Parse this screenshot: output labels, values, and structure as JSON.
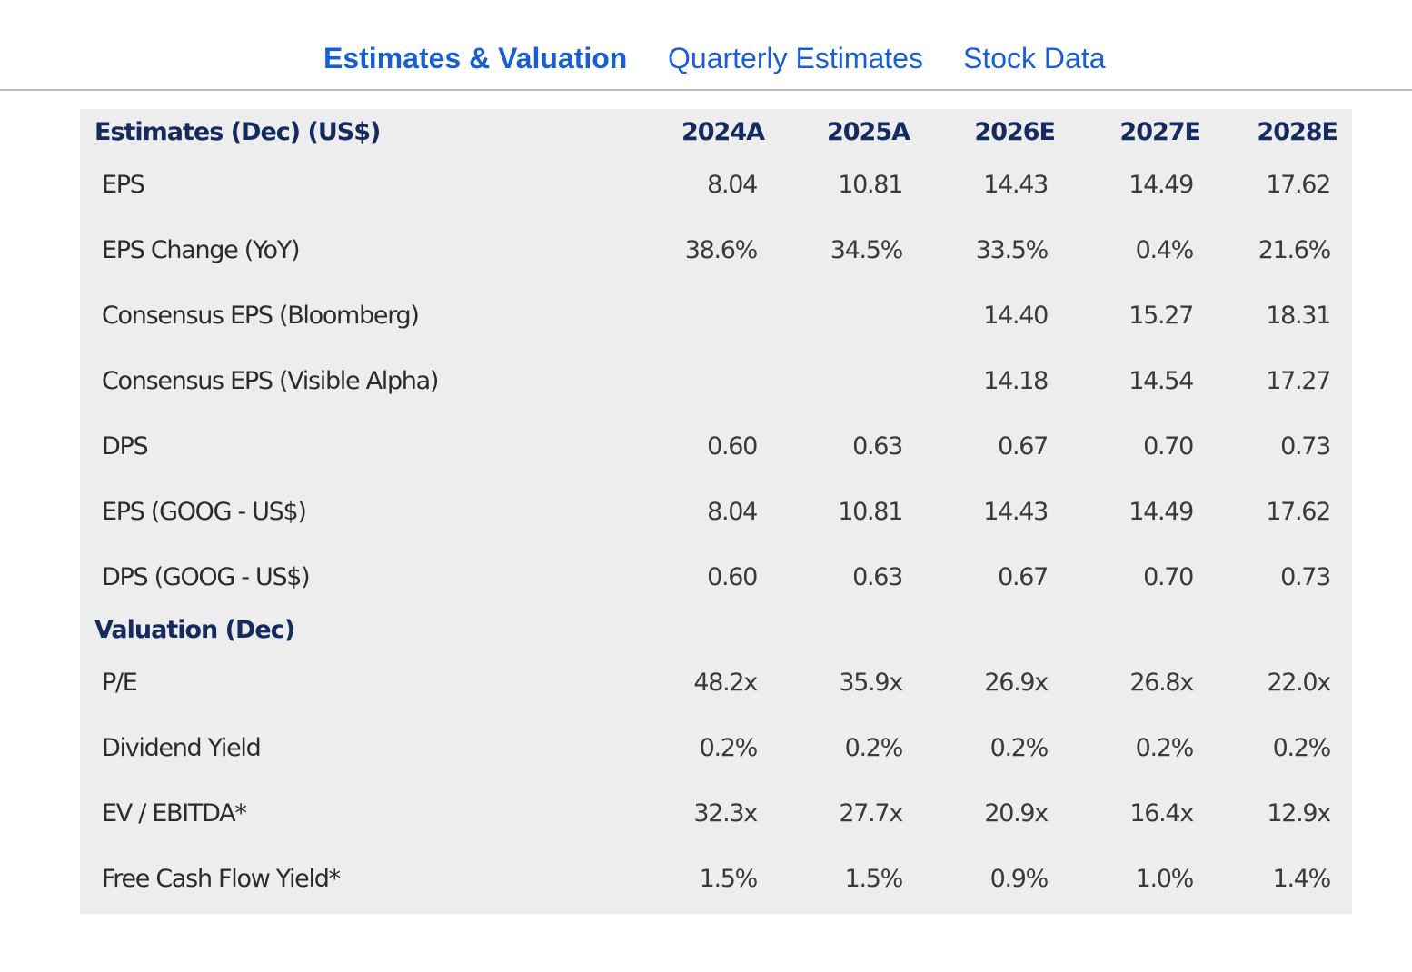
{
  "tabs": [
    {
      "label": "Estimates & Valuation",
      "active": true
    },
    {
      "label": "Quarterly Estimates",
      "active": false
    },
    {
      "label": "Stock Data",
      "active": false
    }
  ],
  "colors": {
    "tab_link": "#1a5fd0",
    "header_navy": "#152a5e",
    "panel_bg": "#ededee",
    "divider": "#b7bcc6"
  },
  "table": {
    "estimates_header": "Estimates (Dec) (US$)",
    "valuation_header": "Valuation (Dec)",
    "columns": [
      "2024A",
      "2025A",
      "2026E",
      "2027E",
      "2028E"
    ],
    "estimates_rows": [
      {
        "label": "EPS",
        "values": [
          "8.04",
          "10.81",
          "14.43",
          "14.49",
          "17.62"
        ]
      },
      {
        "label": "EPS Change (YoY)",
        "values": [
          "38.6%",
          "34.5%",
          "33.5%",
          "0.4%",
          "21.6%"
        ]
      },
      {
        "label": "Consensus EPS (Bloomberg)",
        "values": [
          "",
          "",
          "14.40",
          "15.27",
          "18.31"
        ]
      },
      {
        "label": "Consensus EPS (Visible Alpha)",
        "values": [
          "",
          "",
          "14.18",
          "14.54",
          "17.27"
        ]
      },
      {
        "label": "DPS",
        "values": [
          "0.60",
          "0.63",
          "0.67",
          "0.70",
          "0.73"
        ]
      },
      {
        "label": "EPS (GOOG - US$)",
        "values": [
          "8.04",
          "10.81",
          "14.43",
          "14.49",
          "17.62"
        ]
      },
      {
        "label": "DPS (GOOG - US$)",
        "values": [
          "0.60",
          "0.63",
          "0.67",
          "0.70",
          "0.73"
        ]
      }
    ],
    "valuation_rows": [
      {
        "label": "P/E",
        "values": [
          "48.2x",
          "35.9x",
          "26.9x",
          "26.8x",
          "22.0x"
        ]
      },
      {
        "label": "Dividend Yield",
        "values": [
          "0.2%",
          "0.2%",
          "0.2%",
          "0.2%",
          "0.2%"
        ]
      },
      {
        "label": "EV / EBITDA*",
        "values": [
          "32.3x",
          "27.7x",
          "20.9x",
          "16.4x",
          "12.9x"
        ]
      },
      {
        "label": "Free Cash Flow Yield*",
        "values": [
          "1.5%",
          "1.5%",
          "0.9%",
          "1.0%",
          "1.4%"
        ]
      }
    ]
  }
}
